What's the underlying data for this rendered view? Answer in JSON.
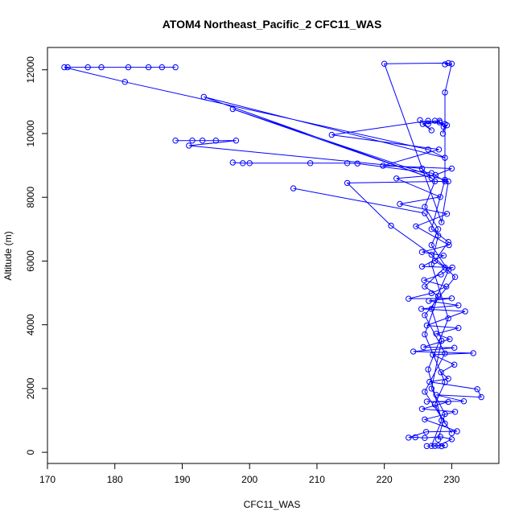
{
  "chart_data": {
    "type": "line",
    "title": "ATOM4 Northeast_Pacific_2 CFC11_WAS",
    "xlabel": "CFC11_WAS",
    "ylabel": "Altitude (m)",
    "xlim": [
      170,
      237
    ],
    "ylim": [
      -350,
      12700
    ],
    "xticks": [
      170,
      180,
      190,
      200,
      210,
      220,
      230
    ],
    "yticks": [
      0,
      2000,
      4000,
      6000,
      8000,
      10000,
      12000
    ],
    "grid": false,
    "legend": "none",
    "series_color": "#0000ff",
    "series": [
      {
        "values": [
          [
            228.5,
            190
          ],
          [
            229.0,
            220
          ],
          [
            227.5,
            200
          ],
          [
            226.3,
            195
          ],
          [
            228.0,
            210
          ],
          [
            230.0,
            410
          ],
          [
            228.3,
            490
          ],
          [
            226.0,
            450
          ],
          [
            224.6,
            470
          ],
          [
            223.6,
            460
          ],
          [
            226.2,
            640
          ],
          [
            230.8,
            660
          ],
          [
            226.0,
            1030
          ],
          [
            230.5,
            1270
          ],
          [
            225.6,
            1360
          ],
          [
            229.5,
            1580
          ],
          [
            226.3,
            1590
          ],
          [
            231.8,
            1600
          ],
          [
            227.7,
            1800
          ],
          [
            234.4,
            1730
          ],
          [
            233.8,
            1980
          ],
          [
            226.7,
            2210
          ],
          [
            229.5,
            2310
          ],
          [
            228.4,
            2510
          ],
          [
            230.4,
            2750
          ],
          [
            227.2,
            3060
          ],
          [
            233.2,
            3110
          ],
          [
            224.3,
            3160
          ],
          [
            230.4,
            3280
          ],
          [
            225.8,
            3300
          ],
          [
            229.7,
            3550
          ],
          [
            227.7,
            3720
          ],
          [
            231.0,
            3900
          ],
          [
            226.3,
            3980
          ],
          [
            232.0,
            4420
          ],
          [
            225.5,
            4500
          ],
          [
            231.0,
            4610
          ],
          [
            226.6,
            4750
          ],
          [
            230.0,
            4830
          ],
          [
            223.6,
            4820
          ],
          [
            227.0,
            4990
          ],
          [
            229.2,
            5200
          ],
          [
            225.9,
            5400
          ],
          [
            228.4,
            5580
          ],
          [
            230.1,
            5800
          ],
          [
            225.6,
            5830
          ],
          [
            228.8,
            6170
          ],
          [
            225.6,
            6280
          ],
          [
            229.6,
            6500
          ],
          [
            224.7,
            7090
          ],
          [
            229.3,
            7480
          ],
          [
            222.3,
            7790
          ],
          [
            228.3,
            8010
          ],
          [
            221.8,
            8590
          ],
          [
            227.6,
            8700
          ],
          [
            230.0,
            8900
          ],
          [
            219.8,
            8990
          ],
          [
            228.1,
            9500
          ],
          [
            212.2,
            9960
          ],
          [
            226.5,
            10400
          ],
          [
            229.3,
            10260
          ],
          [
            228.8,
            10210
          ],
          [
            228.2,
            10350
          ],
          [
            228.2,
            10400
          ],
          [
            226.5,
            10300
          ],
          [
            225.3,
            10420
          ],
          [
            227.0,
            10100
          ],
          [
            225.7,
            10300
          ],
          [
            227.5,
            10400
          ],
          [
            229.0,
            10300
          ],
          [
            228.7,
            10000
          ]
        ]
      },
      {
        "values": [
          [
            173.0,
            12080
          ],
          [
            176.0,
            12080
          ],
          [
            178.0,
            12080
          ],
          [
            182.0,
            12080
          ],
          [
            185.0,
            12080
          ],
          [
            187.0,
            12080
          ],
          [
            189.0,
            12080
          ],
          [
            172.5,
            12080
          ],
          [
            181.5,
            11620
          ],
          [
            226.5,
            9500
          ],
          [
            229.0,
            9240
          ],
          [
            193.2,
            11150
          ],
          [
            227.0,
            8600
          ],
          [
            197.5,
            10770
          ],
          [
            229.5,
            8500
          ],
          [
            228.5,
            7220
          ],
          [
            220.0,
            12190
          ],
          [
            229.5,
            12210
          ],
          [
            229.0,
            12170
          ],
          [
            230.0,
            12190
          ],
          [
            229.0,
            11290
          ],
          [
            229.0,
            8550
          ],
          [
            227.0,
            7000
          ],
          [
            229.5,
            6600
          ],
          [
            227.5,
            6000
          ],
          [
            229.0,
            5800
          ],
          [
            226.0,
            5200
          ],
          [
            228.0,
            4900
          ],
          [
            226.0,
            3700
          ],
          [
            229.0,
            2200
          ],
          [
            227.5,
            1500
          ],
          [
            229.0,
            900
          ]
        ]
      },
      {
        "values": [
          [
            189.0,
            9780
          ],
          [
            191.5,
            9780
          ],
          [
            193.0,
            9780
          ],
          [
            195.0,
            9780
          ],
          [
            198.0,
            9780
          ],
          [
            191.0,
            9620
          ],
          [
            225.6,
            8900
          ],
          [
            227.5,
            8500
          ],
          [
            226.0,
            7700
          ],
          [
            228.0,
            7000
          ],
          [
            227.0,
            6500
          ],
          [
            229.5,
            5700
          ],
          [
            227.0,
            4500
          ],
          [
            228.5,
            3500
          ],
          [
            227.0,
            2000
          ],
          [
            229.0,
            1200
          ],
          [
            228.0,
            400
          ]
        ]
      },
      {
        "values": [
          [
            197.5,
            9090
          ],
          [
            199.0,
            9070
          ],
          [
            200.0,
            9070
          ],
          [
            209.0,
            9070
          ],
          [
            214.5,
            9070
          ],
          [
            216.0,
            9060
          ],
          [
            227.0,
            8760
          ],
          [
            229.0,
            8500
          ],
          [
            214.5,
            8450
          ],
          [
            221.0,
            7110
          ],
          [
            227.0,
            6200
          ],
          [
            230.5,
            5500
          ],
          [
            226.0,
            4300
          ],
          [
            229.0,
            3100
          ],
          [
            226.0,
            1900
          ],
          [
            230.0,
            600
          ]
        ]
      },
      {
        "values": [
          [
            206.5,
            8280
          ],
          [
            226.0,
            7500
          ],
          [
            228.0,
            6800
          ],
          [
            227.0,
            5900
          ],
          [
            229.5,
            4200
          ],
          [
            226.5,
            2600
          ],
          [
            228.5,
            1000
          ],
          [
            227.0,
            200
          ]
        ]
      }
    ]
  }
}
